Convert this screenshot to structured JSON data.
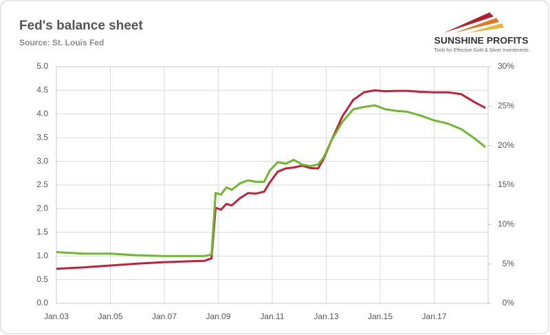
{
  "chart_data": {
    "type": "line",
    "title": "Fed's balance sheet",
    "subtitle": "Source: St. Louis Fed",
    "x": [
      2003,
      2004,
      2005,
      2006,
      2007,
      2008,
      2008.5,
      2008.75,
      2008.9,
      2009.1,
      2009.3,
      2009.5,
      2009.8,
      2010.1,
      2010.4,
      2010.7,
      2010.9,
      2011.2,
      2011.5,
      2011.8,
      2012.1,
      2012.4,
      2012.7,
      2012.9,
      2013.2,
      2013.6,
      2014,
      2014.4,
      2014.8,
      2015.2,
      2015.6,
      2016,
      2016.5,
      2017,
      2017.5,
      2018,
      2018.5,
      2018.9
    ],
    "series": [
      {
        "color": "#c21f3a",
        "values": [
          0.73,
          0.76,
          0.8,
          0.84,
          0.87,
          0.89,
          0.9,
          0.95,
          2.02,
          1.98,
          2.1,
          2.07,
          2.22,
          2.33,
          2.32,
          2.36,
          2.55,
          2.78,
          2.85,
          2.87,
          2.91,
          2.86,
          2.85,
          3.05,
          3.45,
          3.95,
          4.3,
          4.46,
          4.5,
          4.48,
          4.49,
          4.49,
          4.47,
          4.46,
          4.46,
          4.42,
          4.25,
          4.13
        ]
      },
      {
        "color": "#6cb92d",
        "axis": "y2",
        "values": [
          6.5,
          6.3,
          6.3,
          6.1,
          6.0,
          6.0,
          6.0,
          6.2,
          14.0,
          13.8,
          14.7,
          14.4,
          15.2,
          15.6,
          15.4,
          15.4,
          16.8,
          17.9,
          17.7,
          18.2,
          17.6,
          17.4,
          17.6,
          18.5,
          20.7,
          23.0,
          24.6,
          24.9,
          25.1,
          24.6,
          24.4,
          24.3,
          23.8,
          23.2,
          22.8,
          22.1,
          20.9,
          19.8
        ]
      }
    ],
    "xlim": [
      2003,
      2019
    ],
    "xticks": [
      {
        "value": 2003,
        "label": "Jan.03"
      },
      {
        "value": 2005,
        "label": "Jan.05"
      },
      {
        "value": 2007,
        "label": "Jan.07"
      },
      {
        "value": 2009,
        "label": "Jan.09"
      },
      {
        "value": 2011,
        "label": "Jan.11"
      },
      {
        "value": 2013,
        "label": "Jan.13"
      },
      {
        "value": 2015,
        "label": "Jan.15"
      },
      {
        "value": 2017,
        "label": "Jan.17"
      }
    ],
    "ylim": [
      0,
      5
    ],
    "yticks": [
      {
        "value": 0,
        "label": "0.0"
      },
      {
        "value": 0.5,
        "label": "0.5"
      },
      {
        "value": 1,
        "label": "1.0"
      },
      {
        "value": 1.5,
        "label": "1.5"
      },
      {
        "value": 2,
        "label": "2.0"
      },
      {
        "value": 2.5,
        "label": "2.5"
      },
      {
        "value": 3,
        "label": "3.0"
      },
      {
        "value": 3.5,
        "label": "3.5"
      },
      {
        "value": 4,
        "label": "4.0"
      },
      {
        "value": 4.5,
        "label": "4.5"
      },
      {
        "value": 5,
        "label": "5.0"
      }
    ],
    "y2lim": [
      0,
      30
    ],
    "y2ticks": [
      {
        "value": 0,
        "label": "0%"
      },
      {
        "value": 5,
        "label": "5%"
      },
      {
        "value": 10,
        "label": "10%"
      },
      {
        "value": 15,
        "label": "15%"
      },
      {
        "value": 20,
        "label": "20%"
      },
      {
        "value": 25,
        "label": "25%"
      },
      {
        "value": 30,
        "label": "30%"
      }
    ],
    "grid": true
  },
  "logo": {
    "name": "SUNSHINE PROFITS",
    "tagline": "Tools for Effective Gold & Silver Investments"
  }
}
